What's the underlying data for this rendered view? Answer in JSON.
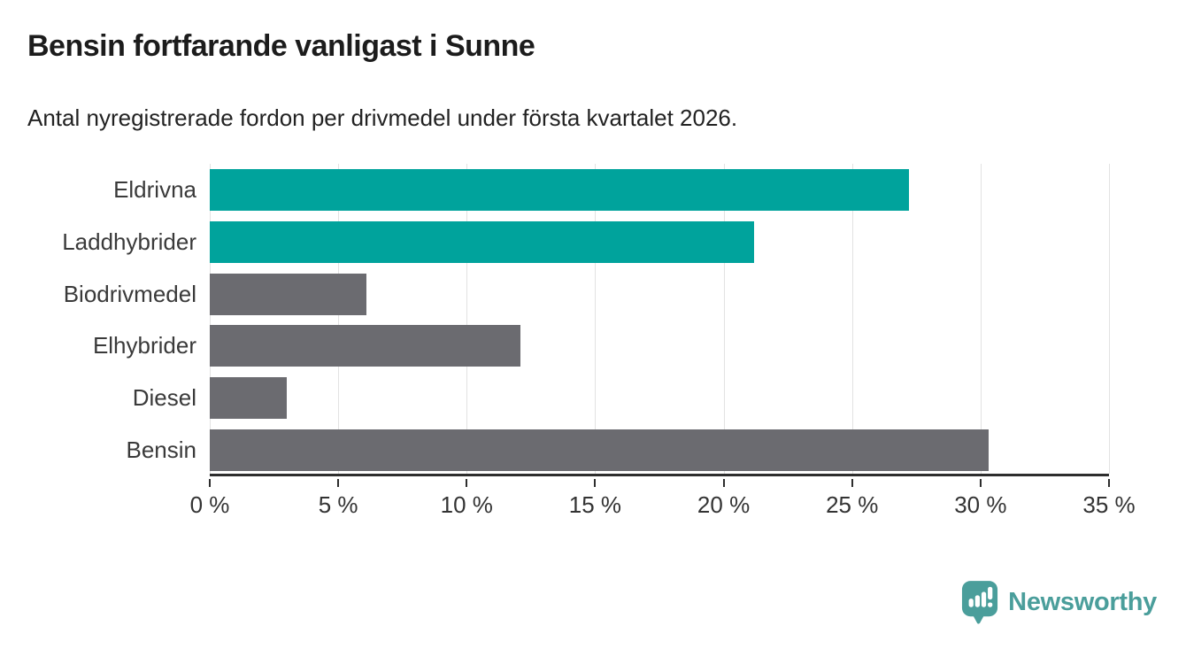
{
  "header": {
    "title": "Bensin fortfarande vanligast i Sunne",
    "subtitle": "Antal nyregistrerade fordon per drivmedel under första kvartalet 2026."
  },
  "chart_data": {
    "type": "bar",
    "orientation": "horizontal",
    "title": "Bensin fortfarande vanligast i Sunne",
    "subtitle": "Antal nyregistrerade fordon per drivmedel under första kvartalet 2026.",
    "categories": [
      "Eldrivna",
      "Laddhybrider",
      "Biodrivmedel",
      "Elhybrider",
      "Diesel",
      "Bensin"
    ],
    "values": [
      27.2,
      21.2,
      6.1,
      12.1,
      3.0,
      30.3
    ],
    "bar_colors": [
      "#00a39c",
      "#00a39c",
      "#6b6b70",
      "#6b6b70",
      "#6b6b70",
      "#6b6b70"
    ],
    "xlabel": "",
    "ylabel": "",
    "xlim": [
      0,
      35
    ],
    "x_ticks": [
      0,
      5,
      10,
      15,
      20,
      25,
      30,
      35
    ],
    "x_tick_labels": [
      "0 %",
      "5 %",
      "10 %",
      "15 %",
      "20 %",
      "25 %",
      "30 %",
      "35 %"
    ],
    "grid": "vertical-gridlines",
    "legend": "none"
  },
  "footer": {
    "logo_text": "Newsworthy"
  },
  "colors": {
    "accent_teal": "#00a39c",
    "bar_gray": "#6b6b70",
    "logo_teal": "#4a9e9b",
    "axis_line": "#2d2d2d",
    "gridline": "#e2e2e2",
    "title_text": "#1c1c1c",
    "label_text": "#3a3a3a"
  }
}
